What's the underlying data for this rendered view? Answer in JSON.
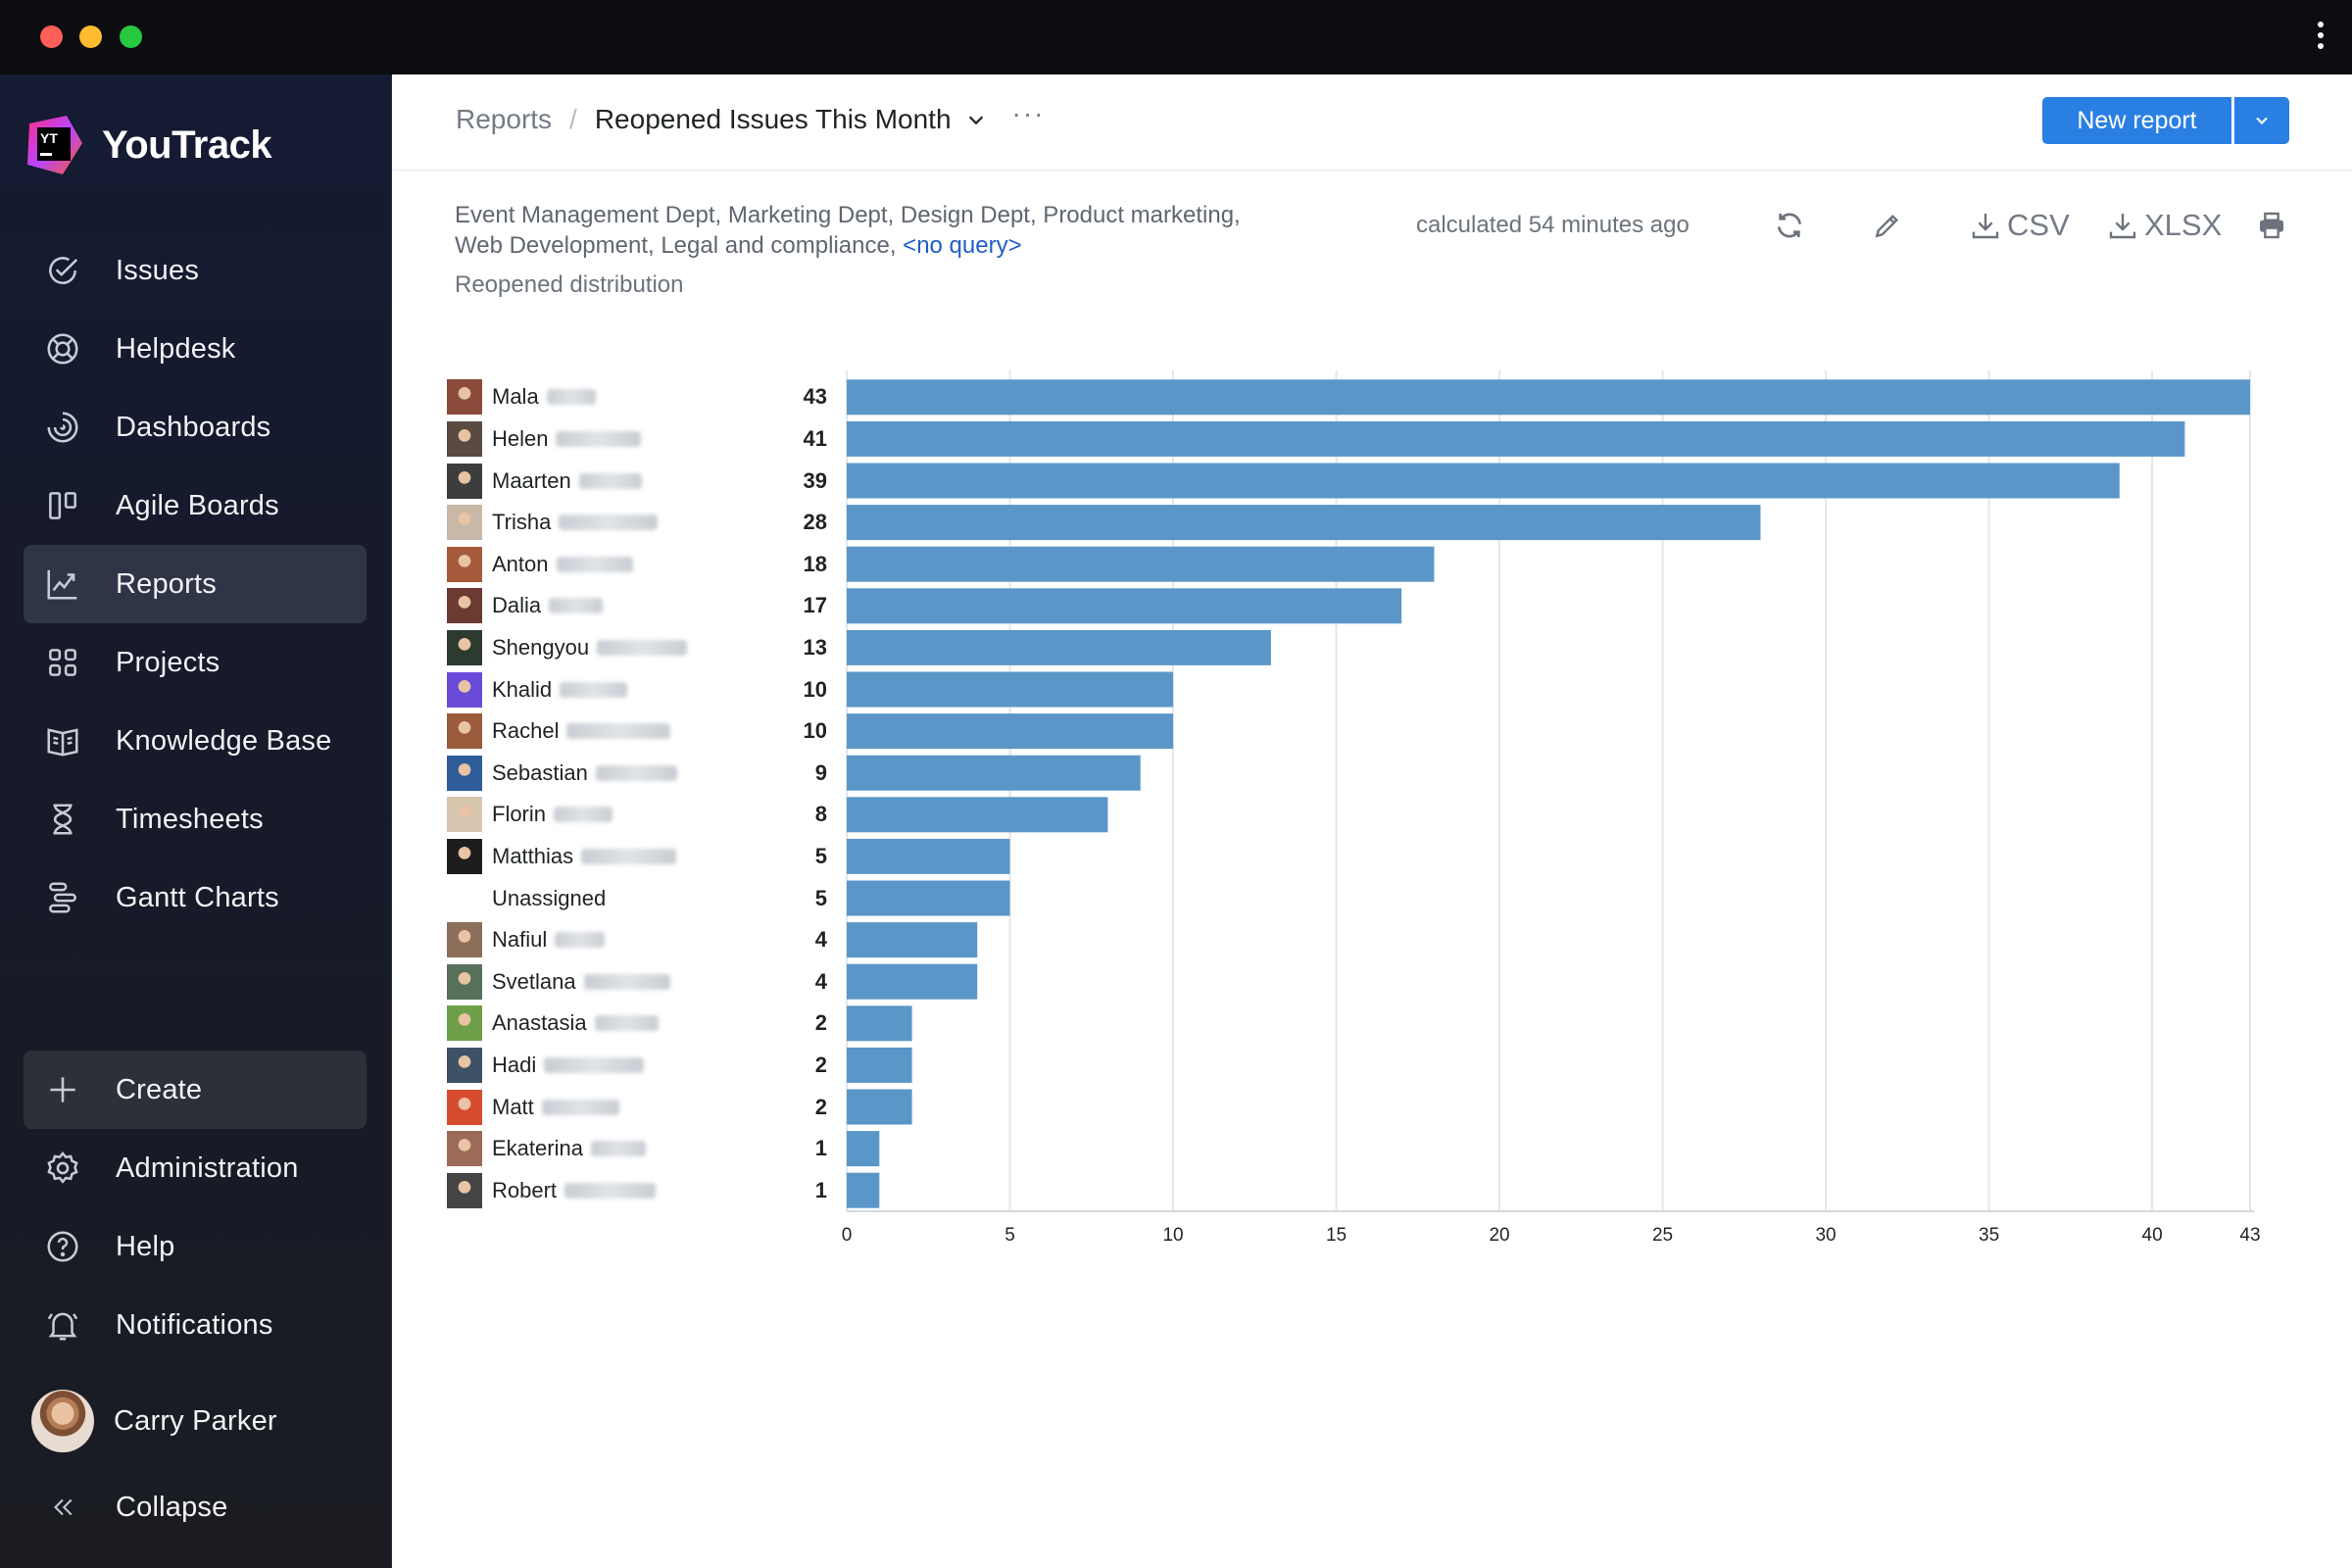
{
  "window": {
    "controls": [
      "close",
      "minimize",
      "zoom"
    ]
  },
  "sidebar": {
    "brand": "YouTrack",
    "nav": [
      {
        "label": "Issues",
        "icon": "issues-check-icon"
      },
      {
        "label": "Helpdesk",
        "icon": "lifebuoy-icon"
      },
      {
        "label": "Dashboards",
        "icon": "dashboard-gauge-icon"
      },
      {
        "label": "Agile Boards",
        "icon": "agile-board-icon"
      },
      {
        "label": "Reports",
        "icon": "reports-chart-icon",
        "active": true
      },
      {
        "label": "Projects",
        "icon": "projects-grid-icon"
      },
      {
        "label": "Knowledge Base",
        "icon": "book-icon"
      },
      {
        "label": "Timesheets",
        "icon": "hourglass-icon"
      },
      {
        "label": "Gantt Charts",
        "icon": "gantt-icon"
      }
    ],
    "bottom": [
      {
        "label": "Create",
        "icon": "plus-icon"
      },
      {
        "label": "Administration",
        "icon": "gear-icon"
      },
      {
        "label": "Help",
        "icon": "help-icon"
      },
      {
        "label": "Notifications",
        "icon": "bell-icon"
      }
    ],
    "user": "Carry Parker",
    "collapse": "Collapse"
  },
  "header": {
    "breadcrumb_root": "Reports",
    "breadcrumb_sep": "/",
    "title": "Reopened Issues This Month",
    "more": "···",
    "new_report": "New report"
  },
  "report": {
    "scope_line1": "Event Management Dept, Marketing Dept, Design Dept, Product marketing,",
    "scope_line2": "Web Development, Legal and compliance,",
    "query_link": "<no query>",
    "subtitle": "Reopened distribution",
    "calculated": "calculated 54 minutes ago",
    "csv": "CSV",
    "xlsx": "XLSX"
  },
  "colors": {
    "bar": "#5a97c8",
    "accent": "#2a7fe3",
    "grid": "#e4e6ea"
  },
  "chart_data": {
    "type": "bar",
    "orientation": "horizontal",
    "categories": [
      "Mala",
      "Helen",
      "Maarten",
      "Trisha",
      "Anton",
      "Dalia",
      "Shengyou",
      "Khalid",
      "Rachel",
      "Sebastian",
      "Florin",
      "Matthias",
      "Unassigned",
      "Nafiul",
      "Svetlana",
      "Anastasia",
      "Hadi",
      "Matt",
      "Ekaterina",
      "Robert"
    ],
    "values": [
      43,
      41,
      39,
      28,
      18,
      17,
      13,
      10,
      10,
      9,
      8,
      5,
      5,
      4,
      4,
      2,
      2,
      2,
      1,
      1
    ],
    "xlim": [
      0,
      43
    ],
    "x_ticks": [
      "0",
      "5",
      "10",
      "15",
      "20",
      "25",
      "30",
      "35",
      "40",
      "43"
    ],
    "grid": true,
    "title": "",
    "xlabel": "",
    "ylabel": ""
  }
}
